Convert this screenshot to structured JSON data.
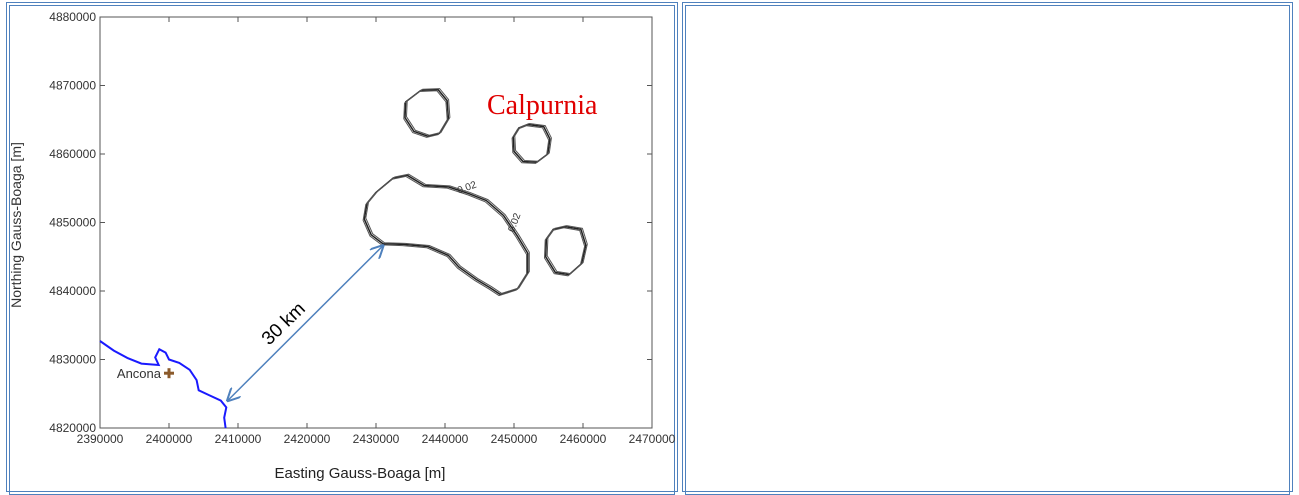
{
  "chart_data": {
    "type": "line",
    "title": "",
    "xlabel": "Easting Gauss-Boaga [m]",
    "ylabel": "Northing Gauss-Boaga [m]",
    "xlim": [
      2390000,
      2470000
    ],
    "ylim": [
      4820000,
      4880000
    ],
    "xticks": [
      2390000,
      2400000,
      2410000,
      2420000,
      2430000,
      2440000,
      2450000,
      2460000,
      2470000
    ],
    "yticks": [
      4820000,
      4830000,
      4840000,
      4850000,
      4860000,
      4870000,
      4880000
    ],
    "series": [
      {
        "values": [
          [
            2390000,
            4832700
          ],
          [
            2392000,
            4831300
          ],
          [
            2394000,
            4830200
          ],
          [
            2396000,
            4829400
          ],
          [
            2398500,
            4829200
          ],
          [
            2398000,
            4830300
          ],
          [
            2398600,
            4831500
          ],
          [
            2399500,
            4831000
          ],
          [
            2400000,
            4830000
          ],
          [
            2401500,
            4829500
          ],
          [
            2403000,
            4828500
          ],
          [
            2404000,
            4827000
          ],
          [
            2404300,
            4825500
          ],
          [
            2405800,
            4824800
          ],
          [
            2407500,
            4824000
          ],
          [
            2408300,
            4823000
          ],
          [
            2408000,
            4821500
          ],
          [
            2408200,
            4820000
          ]
        ]
      },
      {
        "values": [
          [
            2430000,
            4854400
          ],
          [
            2432500,
            4856500
          ],
          [
            2434500,
            4856900
          ],
          [
            2437000,
            4855400
          ],
          [
            2440500,
            4855200
          ],
          [
            2443500,
            4854200
          ],
          [
            2446000,
            4853200
          ],
          [
            2448500,
            4851000
          ],
          [
            2450500,
            4848000
          ],
          [
            2452000,
            4845500
          ],
          [
            2452000,
            4842700
          ],
          [
            2450500,
            4840300
          ],
          [
            2448000,
            4839500
          ],
          [
            2446500,
            4840500
          ],
          [
            2444500,
            4841700
          ],
          [
            2442000,
            4843500
          ],
          [
            2440500,
            4845200
          ],
          [
            2437500,
            4846500
          ],
          [
            2434000,
            4846800
          ],
          [
            2431000,
            4846900
          ],
          [
            2429300,
            4848200
          ],
          [
            2428300,
            4850500
          ],
          [
            2428700,
            4852800
          ],
          [
            2430000,
            4854400
          ]
        ]
      },
      {
        "values": [
          [
            2436500,
            4869300
          ],
          [
            2439000,
            4869400
          ],
          [
            2440300,
            4867800
          ],
          [
            2440500,
            4865200
          ],
          [
            2439200,
            4863000
          ],
          [
            2437500,
            4862600
          ],
          [
            2435500,
            4863300
          ],
          [
            2434200,
            4865300
          ],
          [
            2434300,
            4867600
          ],
          [
            2436500,
            4869300
          ]
        ]
      },
      {
        "values": [
          [
            2452000,
            4864300
          ],
          [
            2454300,
            4864000
          ],
          [
            2455200,
            4862200
          ],
          [
            2454900,
            4860000
          ],
          [
            2453300,
            4858800
          ],
          [
            2451300,
            4858900
          ],
          [
            2450000,
            4860400
          ],
          [
            2449900,
            4862500
          ],
          [
            2450700,
            4863800
          ],
          [
            2452000,
            4864300
          ]
        ]
      },
      {
        "values": [
          [
            2457400,
            4849400
          ],
          [
            2459700,
            4849000
          ],
          [
            2460400,
            4846700
          ],
          [
            2459800,
            4844000
          ],
          [
            2458000,
            4842400
          ],
          [
            2456000,
            4842700
          ],
          [
            2454600,
            4845000
          ],
          [
            2454700,
            4847600
          ],
          [
            2455700,
            4849000
          ],
          [
            2457400,
            4849400
          ]
        ]
      }
    ],
    "points": [
      {
        "name": "Ancona",
        "x": 2400000,
        "y": 4828000,
        "color": "#8b5a2b"
      }
    ],
    "contour_labels": [
      {
        "text": "0.02",
        "x": 2442000,
        "y": 4854200
      },
      {
        "text": "0.02",
        "x": 2450000,
        "y": 4848500
      }
    ],
    "annotations": [
      {
        "text": "Calpurnia",
        "color": "#e00000"
      },
      {
        "text": "30 km",
        "from": [
          2408500,
          4824000
        ],
        "to": [
          2431000,
          4846600
        ],
        "color": "#4f81bd"
      }
    ],
    "colors": {
      "coastline": "#1a1aff",
      "contours": "#222222",
      "arrow": "#4f81bd",
      "panel_border": "#4f81bd"
    }
  }
}
